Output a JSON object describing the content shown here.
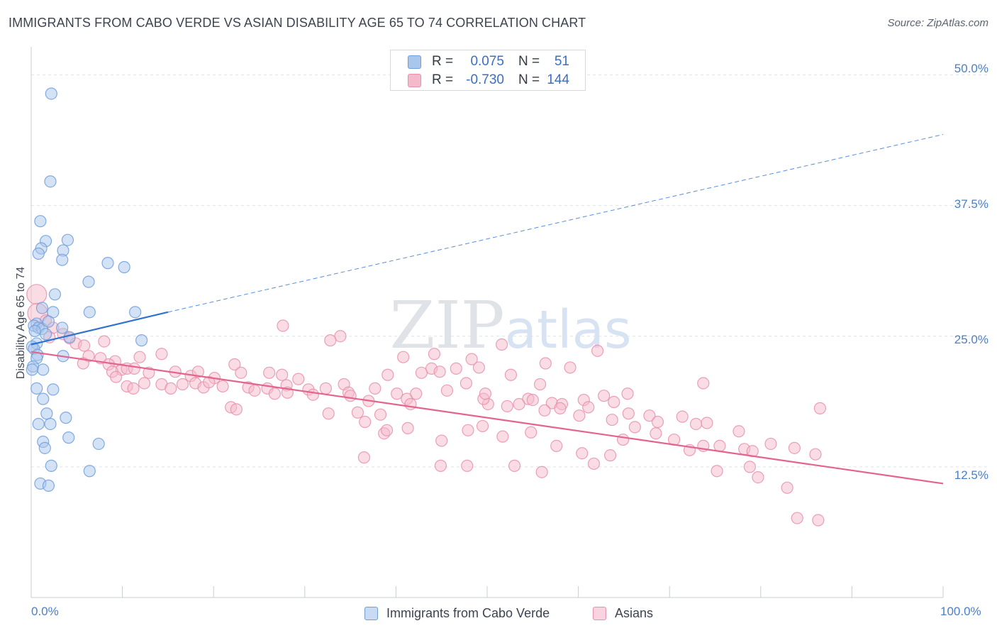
{
  "title": "IMMIGRANTS FROM CABO VERDE VS ASIAN DISABILITY AGE 65 TO 74 CORRELATION CHART",
  "source": "Source: ZipAtlas.com",
  "watermark": "ZIPatlas",
  "colors": {
    "blue_fill": "#a9c6ec",
    "blue_stroke": "#6f9edc",
    "blue_line": "#2f72d0",
    "pink_fill": "#f5b9cc",
    "pink_stroke": "#e98fad",
    "pink_line": "#e2648f",
    "grid": "#dfe3ea",
    "tick_text": "#4a7fc9"
  },
  "stats": {
    "rows": [
      {
        "r_label": "R =",
        "r_value": "0.075",
        "n_label": "N =",
        "n_value": "51",
        "swatch_fill": "#a9c6ec",
        "swatch_stroke": "#6f9edc"
      },
      {
        "r_label": "R =",
        "r_value": "-0.730",
        "n_label": "N =",
        "n_value": "144",
        "swatch_fill": "#f5b9cc",
        "swatch_stroke": "#e98fad"
      }
    ]
  },
  "legend": {
    "items": [
      {
        "label": "Immigrants from Cabo Verde",
        "swatch_fill": "#c9dbf3",
        "swatch_stroke": "#6f9edc"
      },
      {
        "label": "Asians",
        "swatch_fill": "#f9d3df",
        "swatch_stroke": "#e98fad"
      }
    ]
  },
  "chart_data": {
    "type": "scatter",
    "xlabel": "",
    "ylabel": "Disability Age 65 to 74",
    "xlim": [
      0,
      100
    ],
    "ylim": [
      0,
      52
    ],
    "x_tick_labels": [
      "0.0%",
      "100.0%"
    ],
    "y_ticks": [
      12.5,
      25.0,
      37.5,
      50.0
    ],
    "y_tick_labels": [
      "12.5%",
      "25.0%",
      "37.5%",
      "50.0%"
    ],
    "x_minor_ticks": [
      0,
      10,
      20,
      30,
      40,
      50,
      60,
      70,
      80,
      90,
      100
    ],
    "grid": true,
    "legend_position": "bottom",
    "series": [
      {
        "name": "Immigrants from Cabo Verde",
        "color": "#a9c6ec",
        "points": [
          [
            2.2,
            48.2
          ],
          [
            2.1,
            39.8
          ],
          [
            1.0,
            36.0
          ],
          [
            1.6,
            34.1
          ],
          [
            4.0,
            34.2
          ],
          [
            1.1,
            33.4
          ],
          [
            3.5,
            33.2
          ],
          [
            0.8,
            32.9
          ],
          [
            3.4,
            32.3
          ],
          [
            8.4,
            32.0
          ],
          [
            10.2,
            31.6
          ],
          [
            6.3,
            30.2
          ],
          [
            2.6,
            29.0
          ],
          [
            6.4,
            27.3
          ],
          [
            11.4,
            27.3
          ],
          [
            1.2,
            27.7
          ],
          [
            2.4,
            27.3
          ],
          [
            0.6,
            26.2
          ],
          [
            0.3,
            26.0
          ],
          [
            0.8,
            25.8
          ],
          [
            1.2,
            25.7
          ],
          [
            3.4,
            25.8
          ],
          [
            1.6,
            25.2
          ],
          [
            4.2,
            24.9
          ],
          [
            12.1,
            24.6
          ],
          [
            0.6,
            24.3
          ],
          [
            0.1,
            24.0
          ],
          [
            0.3,
            23.8
          ],
          [
            0.7,
            23.2
          ],
          [
            0.6,
            22.9
          ],
          [
            3.5,
            23.1
          ],
          [
            0.2,
            22.1
          ],
          [
            1.3,
            21.8
          ],
          [
            0.1,
            21.8
          ],
          [
            0.6,
            20.0
          ],
          [
            2.4,
            19.9
          ],
          [
            1.3,
            19.0
          ],
          [
            1.7,
            17.6
          ],
          [
            3.8,
            17.2
          ],
          [
            0.8,
            16.6
          ],
          [
            2.1,
            16.6
          ],
          [
            4.1,
            15.3
          ],
          [
            1.3,
            14.9
          ],
          [
            7.4,
            14.7
          ],
          [
            1.5,
            14.3
          ],
          [
            2.2,
            12.6
          ],
          [
            6.4,
            12.1
          ],
          [
            1.0,
            10.9
          ],
          [
            1.9,
            10.7
          ],
          [
            0.4,
            25.5
          ],
          [
            1.9,
            26.4
          ]
        ]
      },
      {
        "name": "Asians",
        "color": "#f5b9cc",
        "points": [
          [
            0.6,
            29.0
          ],
          [
            0.7,
            27.2
          ],
          [
            1.6,
            26.5
          ],
          [
            2.4,
            25.8
          ],
          [
            3.5,
            25.2
          ],
          [
            2.0,
            24.9
          ],
          [
            4.2,
            24.8
          ],
          [
            4.9,
            24.3
          ],
          [
            5.8,
            24.1
          ],
          [
            8.0,
            24.5
          ],
          [
            14.3,
            23.3
          ],
          [
            6.3,
            23.1
          ],
          [
            7.6,
            22.9
          ],
          [
            9.2,
            22.6
          ],
          [
            11.9,
            23.0
          ],
          [
            5.7,
            22.4
          ],
          [
            8.5,
            22.3
          ],
          [
            9.9,
            21.8
          ],
          [
            10.5,
            21.9
          ],
          [
            11.3,
            21.9
          ],
          [
            12.9,
            21.5
          ],
          [
            15.8,
            21.6
          ],
          [
            17.5,
            21.2
          ],
          [
            18.3,
            21.6
          ],
          [
            20.1,
            21.0
          ],
          [
            22.3,
            22.3
          ],
          [
            23.0,
            21.5
          ],
          [
            26.1,
            21.5
          ],
          [
            27.5,
            21.3
          ],
          [
            8.9,
            21.6
          ],
          [
            9.3,
            21.1
          ],
          [
            10.5,
            20.2
          ],
          [
            12.4,
            20.5
          ],
          [
            11.2,
            20.0
          ],
          [
            14.3,
            20.4
          ],
          [
            15.3,
            20.0
          ],
          [
            16.6,
            20.4
          ],
          [
            18.0,
            20.5
          ],
          [
            18.9,
            20.1
          ],
          [
            19.5,
            20.6
          ],
          [
            21.0,
            20.2
          ],
          [
            23.8,
            20.1
          ],
          [
            24.5,
            19.8
          ],
          [
            25.9,
            20.0
          ],
          [
            26.7,
            19.5
          ],
          [
            28.0,
            20.3
          ],
          [
            29.3,
            20.9
          ],
          [
            30.4,
            19.9
          ],
          [
            32.3,
            20.0
          ],
          [
            34.3,
            20.4
          ],
          [
            34.8,
            19.6
          ],
          [
            35.0,
            19.3
          ],
          [
            37.7,
            20.0
          ],
          [
            39.1,
            21.3
          ],
          [
            40.1,
            19.5
          ],
          [
            41.2,
            19.0
          ],
          [
            42.2,
            19.5
          ],
          [
            43.9,
            21.9
          ],
          [
            44.8,
            21.6
          ],
          [
            45.6,
            19.8
          ],
          [
            47.7,
            20.5
          ],
          [
            49.1,
            22.0
          ],
          [
            40.8,
            23.0
          ],
          [
            42.8,
            21.5
          ],
          [
            46.6,
            21.9
          ],
          [
            52.6,
            21.3
          ],
          [
            55.8,
            20.4
          ],
          [
            50.1,
            18.5
          ],
          [
            49.6,
            19.0
          ],
          [
            54.5,
            19.0
          ],
          [
            57.1,
            18.6
          ],
          [
            58.2,
            18.5
          ],
          [
            60.6,
            18.9
          ],
          [
            61.1,
            18.2
          ],
          [
            62.8,
            19.3
          ],
          [
            63.9,
            18.7
          ],
          [
            65.4,
            19.5
          ],
          [
            28.1,
            19.6
          ],
          [
            30.9,
            19.4
          ],
          [
            37.0,
            18.8
          ],
          [
            38.3,
            17.5
          ],
          [
            41.6,
            18.5
          ],
          [
            35.8,
            17.7
          ],
          [
            32.6,
            17.6
          ],
          [
            21.9,
            18.2
          ],
          [
            22.5,
            18.0
          ],
          [
            33.9,
            25.0
          ],
          [
            27.6,
            26.0
          ],
          [
            32.8,
            24.6
          ],
          [
            51.6,
            24.2
          ],
          [
            44.2,
            23.3
          ],
          [
            48.3,
            22.8
          ],
          [
            56.4,
            22.4
          ],
          [
            59.1,
            22.0
          ],
          [
            62.1,
            23.6
          ],
          [
            73.7,
            20.5
          ],
          [
            49.8,
            19.5
          ],
          [
            52.2,
            18.3
          ],
          [
            53.5,
            18.5
          ],
          [
            55.0,
            18.9
          ],
          [
            56.3,
            17.9
          ],
          [
            58.0,
            18.1
          ],
          [
            60.1,
            17.4
          ],
          [
            63.7,
            17.0
          ],
          [
            65.5,
            17.6
          ],
          [
            67.8,
            17.4
          ],
          [
            68.7,
            16.8
          ],
          [
            71.4,
            17.3
          ],
          [
            72.9,
            16.6
          ],
          [
            74.1,
            16.7
          ],
          [
            86.5,
            18.1
          ],
          [
            36.6,
            16.8
          ],
          [
            38.7,
            15.7
          ],
          [
            39.0,
            16.0
          ],
          [
            41.3,
            16.2
          ],
          [
            45.0,
            15.0
          ],
          [
            47.9,
            16.0
          ],
          [
            49.5,
            16.4
          ],
          [
            51.7,
            15.4
          ],
          [
            54.8,
            15.8
          ],
          [
            57.6,
            14.5
          ],
          [
            60.4,
            13.8
          ],
          [
            63.5,
            13.6
          ],
          [
            64.9,
            15.1
          ],
          [
            66.2,
            16.3
          ],
          [
            68.5,
            15.7
          ],
          [
            70.5,
            15.1
          ],
          [
            72.2,
            14.1
          ],
          [
            73.7,
            14.5
          ],
          [
            75.5,
            14.5
          ],
          [
            77.6,
            15.9
          ],
          [
            78.2,
            14.2
          ],
          [
            79.1,
            14.0
          ],
          [
            81.1,
            14.7
          ],
          [
            83.7,
            14.3
          ],
          [
            86.0,
            13.7
          ],
          [
            36.5,
            13.4
          ],
          [
            44.9,
            12.6
          ],
          [
            47.8,
            12.6
          ],
          [
            53.0,
            12.6
          ],
          [
            56.0,
            12.0
          ],
          [
            61.7,
            12.8
          ],
          [
            75.2,
            12.1
          ],
          [
            78.8,
            12.5
          ],
          [
            79.7,
            11.5
          ],
          [
            82.9,
            10.5
          ],
          [
            84.0,
            7.6
          ],
          [
            86.3,
            7.4
          ]
        ]
      }
    ],
    "trend_lines": [
      {
        "series": "Immigrants from Cabo Verde",
        "solid": [
          [
            0,
            24.2
          ],
          [
            15,
            27.3
          ]
        ],
        "dashed_to": [
          100,
          44.3
        ]
      },
      {
        "series": "Asians",
        "solid": [
          [
            0,
            23.5
          ],
          [
            100,
            10.9
          ]
        ]
      }
    ]
  }
}
